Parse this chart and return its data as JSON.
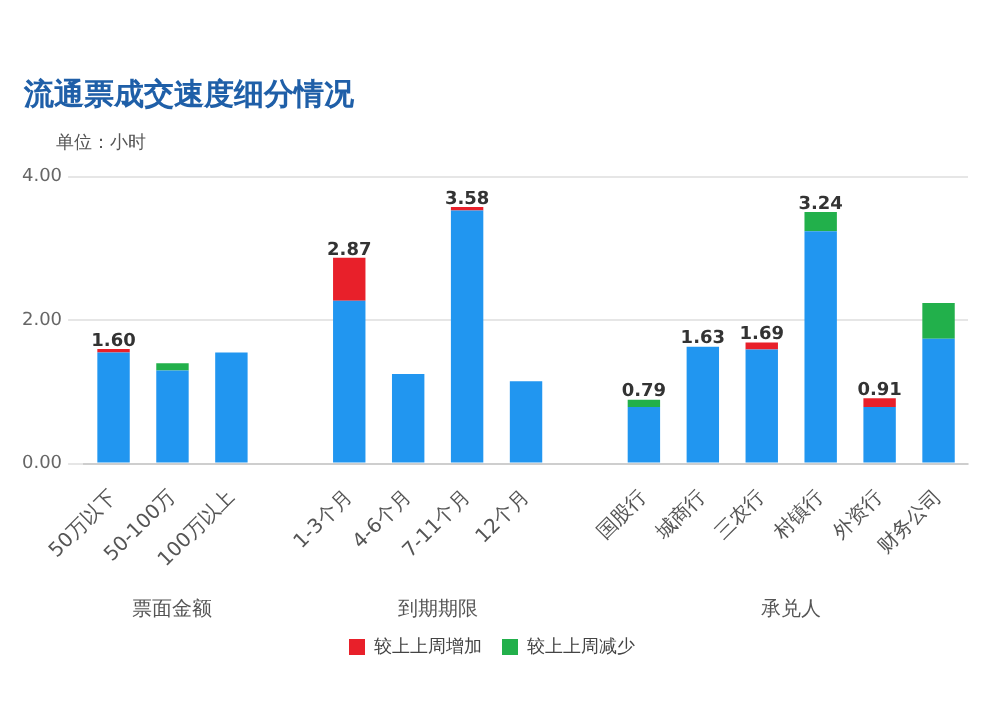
{
  "chart_data": {
    "type": "bar",
    "title": "流通票成交速度细分情况",
    "ylabel": "单位：小时",
    "categories": [
      "50万以下",
      "50-100万",
      "100万以上",
      null,
      "1-3个月",
      "4-6个月",
      "7-11个月",
      "12个月",
      null,
      "国股行",
      "城商行",
      "三农行",
      "村镇行",
      "外资行",
      "财务公司"
    ],
    "series": [
      {
        "color": "#2196f0",
        "values": [
          1.55,
          1.3,
          1.55,
          null,
          2.27,
          1.25,
          3.53,
          1.15,
          null,
          0.79,
          1.63,
          1.59,
          3.24,
          0.79,
          1.74
        ],
        "value_labels": [
          null,
          null,
          null,
          null,
          null,
          null,
          null,
          null,
          null,
          "0.79",
          null,
          null,
          "3.24",
          null,
          null
        ]
      },
      {
        "name": "较上上周增加",
        "color": "#e8202a",
        "values": [
          0.05,
          null,
          null,
          null,
          0.6,
          null,
          0.05,
          null,
          null,
          null,
          null,
          0.1,
          null,
          0.12,
          null
        ]
      },
      {
        "name": "较上上周减少",
        "color": "#22b04b",
        "values": [
          null,
          0.1,
          null,
          null,
          null,
          null,
          null,
          null,
          null,
          0.1,
          null,
          null,
          0.27,
          null,
          0.5
        ]
      }
    ],
    "stacked": true,
    "totals": [
      "1.60",
      null,
      null,
      null,
      "2.87",
      null,
      "3.58",
      null,
      null,
      null,
      "1.63",
      "1.69",
      null,
      "0.91",
      null
    ],
    "annotations": [
      "票面金额",
      "到期期限",
      "承兑人"
    ],
    "ylim": [
      0,
      4
    ],
    "yticks": [
      {
        "value": 0,
        "label": "0.00"
      },
      {
        "value": 2,
        "label": "2.00"
      },
      {
        "value": 4,
        "label": "4.00"
      }
    ],
    "grid": "y",
    "legend": "bottom"
  }
}
